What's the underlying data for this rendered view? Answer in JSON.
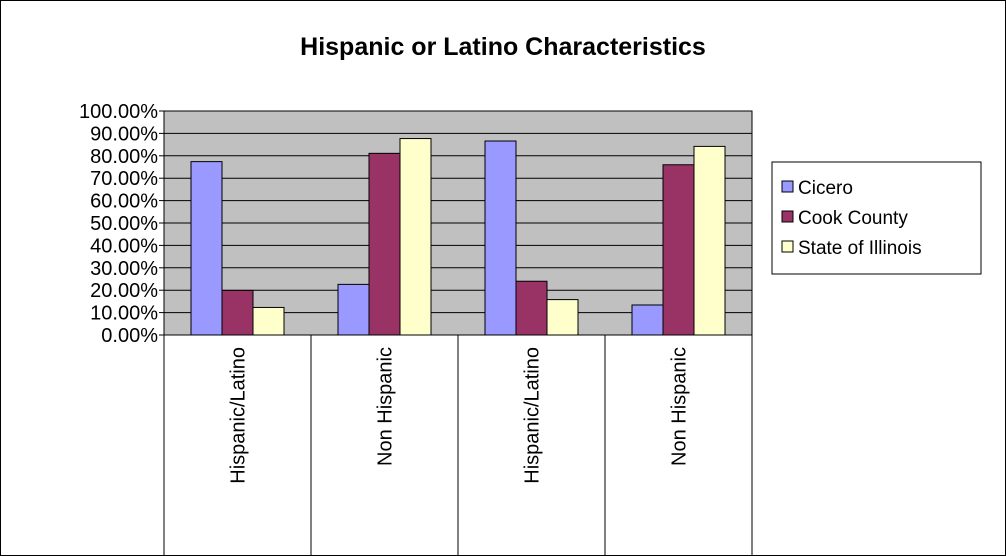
{
  "chart_data": {
    "type": "bar",
    "title": "Hispanic or Latino Characteristics",
    "xlabel": "",
    "ylabel": "",
    "categories": [
      "Hispanic/Latino",
      "Non Hispanic",
      "Hispanic/Latino",
      "Non Hispanic"
    ],
    "series": [
      {
        "name": "Cicero",
        "color": "#9999ff",
        "values": [
          77.4,
          22.6,
          86.6,
          13.4
        ]
      },
      {
        "name": "Cook County",
        "color": "#993366",
        "values": [
          19.9,
          81.1,
          24.0,
          76.0
        ]
      },
      {
        "name": "State of Illinois",
        "color": "#ffffcc",
        "values": [
          12.3,
          87.7,
          15.8,
          84.2
        ]
      }
    ],
    "ylim": [
      0,
      100
    ],
    "yticks": [
      "0.00%",
      "10.00%",
      "20.00%",
      "30.00%",
      "40.00%",
      "50.00%",
      "60.00%",
      "70.00%",
      "80.00%",
      "90.00%",
      "100.00%"
    ],
    "grid": true,
    "plot_background": "#c0c0c0",
    "legend_position": "right"
  }
}
